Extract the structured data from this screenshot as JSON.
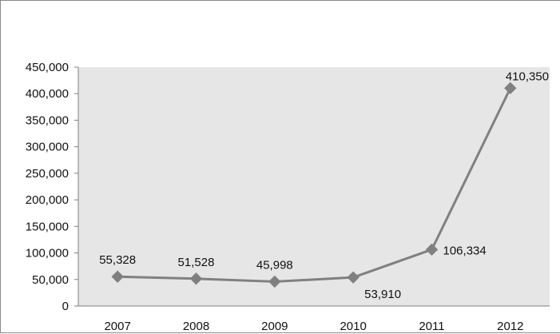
{
  "chart_data": {
    "type": "line",
    "title": "",
    "xlabel": "",
    "ylabel": "",
    "categories": [
      "2007",
      "2008",
      "2009",
      "2010",
      "2011",
      "2012"
    ],
    "series": [
      {
        "values": [
          55328,
          51528,
          45998,
          53910,
          106334,
          410350
        ]
      }
    ],
    "data_labels": [
      "55,328",
      "51,528",
      "45,998",
      "53,910",
      "106,334",
      "410,350"
    ],
    "ylim": [
      0,
      450000
    ],
    "y_ticks": [
      0,
      50000,
      100000,
      150000,
      200000,
      250000,
      300000,
      350000,
      400000,
      450000
    ],
    "y_tick_labels": [
      "0",
      "50,000",
      "100,000",
      "150,000",
      "200,000",
      "250,000",
      "300,000",
      "350,000",
      "400,000",
      "450,000"
    ],
    "grid": false,
    "legend": "none",
    "marker": "diamond",
    "colors": {
      "line": "#808080",
      "marker": "#808080",
      "plot_background": "#e6e6e6",
      "axis": "#808080"
    }
  }
}
